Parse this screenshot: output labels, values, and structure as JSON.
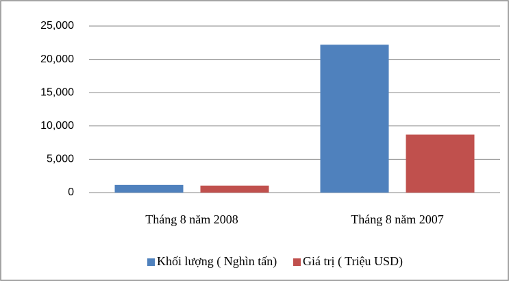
{
  "chart_data": {
    "type": "bar",
    "categories": [
      "Tháng 8 năm 2008",
      "Tháng 8 năm 2007"
    ],
    "series": [
      {
        "name": "Khối lượng ( Nghìn tấn)",
        "color": "#4f81bd",
        "values": [
          1150,
          22200
        ]
      },
      {
        "name": "Giá trị ( Triệu USD)",
        "color": "#c0504d",
        "values": [
          1050,
          8700
        ]
      }
    ],
    "ylim": [
      0,
      25000
    ],
    "yticks": [
      0,
      {
        "value": 5000,
        "label": "5,000"
      },
      {
        "value": 10000,
        "label": "10,000"
      },
      {
        "value": 15000,
        "label": "15,000"
      },
      {
        "value": 20000,
        "label": "20,000"
      },
      {
        "value": 25000,
        "label": "25,000"
      }
    ],
    "grid": true,
    "legend": "bottom"
  }
}
